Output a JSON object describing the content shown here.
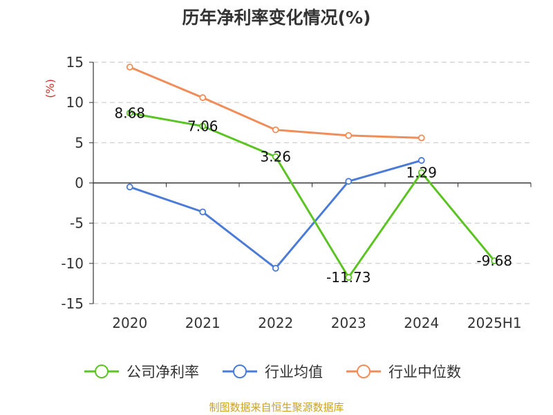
{
  "title": "历年净利率变化情况(%)",
  "source": "制图数据来自恒生聚源数据库",
  "chart_data": {
    "type": "line",
    "categories": [
      "2020",
      "2021",
      "2022",
      "2023",
      "2024",
      "2025H1"
    ],
    "ylabel": "(%)",
    "ylim": [
      -15,
      15
    ],
    "yticks": [
      15,
      10,
      5,
      0,
      -5,
      -10,
      -15
    ],
    "grid": true,
    "legend_position": "bottom",
    "series": [
      {
        "name": "公司净利率",
        "color": "#5bc422",
        "values": [
          8.68,
          7.06,
          3.26,
          -11.73,
          1.29,
          -9.68
        ],
        "labels": [
          "8.68",
          "7.06",
          "3.26",
          "-11.73",
          "1.29",
          "-9.68"
        ]
      },
      {
        "name": "行业均值",
        "color": "#4a7bd8",
        "values": [
          -0.5,
          -3.6,
          -10.6,
          0.2,
          2.8,
          null
        ]
      },
      {
        "name": "行业中位数",
        "color": "#f08d58",
        "values": [
          14.4,
          10.6,
          6.6,
          5.9,
          5.6,
          null
        ]
      }
    ]
  }
}
